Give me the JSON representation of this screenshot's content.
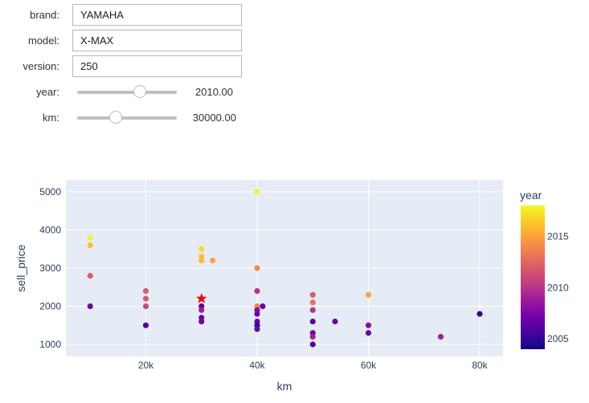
{
  "form": {
    "brand": {
      "label": "brand:",
      "value": "YAMAHA"
    },
    "model": {
      "label": "model:",
      "value": "X-MAX"
    },
    "version": {
      "label": "version:",
      "value": "250"
    },
    "year": {
      "label": "year:",
      "value": "2010.00",
      "slider_pos": 0.63
    },
    "km": {
      "label": "km:",
      "value": "30000.00",
      "slider_pos": 0.39
    }
  },
  "chart_data": {
    "type": "scatter",
    "title": "",
    "xlabel": "km",
    "ylabel": "sell_price",
    "xlim": [
      5000,
      85000
    ],
    "ylim": [
      700,
      5300
    ],
    "x_ticks": [
      {
        "v": 20000,
        "label": "20k"
      },
      {
        "v": 40000,
        "label": "40k"
      },
      {
        "v": 60000,
        "label": "60k"
      },
      {
        "v": 80000,
        "label": "80k"
      }
    ],
    "y_ticks": [
      {
        "v": 1000,
        "label": "1000"
      },
      {
        "v": 2000,
        "label": "2000"
      },
      {
        "v": 3000,
        "label": "3000"
      },
      {
        "v": 4000,
        "label": "4000"
      },
      {
        "v": 5000,
        "label": "5000"
      }
    ],
    "grid": true,
    "colorbar": {
      "title": "year",
      "min": 2004,
      "max": 2018,
      "ticks": [
        {
          "v": 2005,
          "label": "2005"
        },
        {
          "v": 2010,
          "label": "2010"
        },
        {
          "v": 2015,
          "label": "2015"
        }
      ],
      "colorscale": "plasma"
    },
    "points": [
      {
        "km": 10000,
        "sell_price": 3800,
        "year": 2018
      },
      {
        "km": 10000,
        "sell_price": 3600,
        "year": 2016
      },
      {
        "km": 10000,
        "sell_price": 2800,
        "year": 2012
      },
      {
        "km": 10000,
        "sell_price": 2000,
        "year": 2007
      },
      {
        "km": 20000,
        "sell_price": 2400,
        "year": 2012
      },
      {
        "km": 20000,
        "sell_price": 2200,
        "year": 2012
      },
      {
        "km": 20000,
        "sell_price": 2000,
        "year": 2011
      },
      {
        "km": 20000,
        "sell_price": 1500,
        "year": 2006
      },
      {
        "km": 30000,
        "sell_price": 3500,
        "year": 2017
      },
      {
        "km": 30000,
        "sell_price": 3300,
        "year": 2016
      },
      {
        "km": 30000,
        "sell_price": 3200,
        "year": 2016
      },
      {
        "km": 32000,
        "sell_price": 3200,
        "year": 2015
      },
      {
        "km": 30000,
        "sell_price": 2000,
        "year": 2006
      },
      {
        "km": 30000,
        "sell_price": 1900,
        "year": 2009
      },
      {
        "km": 30000,
        "sell_price": 1700,
        "year": 2007
      },
      {
        "km": 30000,
        "sell_price": 1600,
        "year": 2007
      },
      {
        "km": 40000,
        "sell_price": 5000,
        "year": 2018
      },
      {
        "km": 40000,
        "sell_price": 3000,
        "year": 2014
      },
      {
        "km": 40000,
        "sell_price": 2400,
        "year": 2010
      },
      {
        "km": 40000,
        "sell_price": 2000,
        "year": 2014
      },
      {
        "km": 41000,
        "sell_price": 2000,
        "year": 2007
      },
      {
        "km": 40000,
        "sell_price": 1900,
        "year": 2008
      },
      {
        "km": 40000,
        "sell_price": 1800,
        "year": 2007
      },
      {
        "km": 40000,
        "sell_price": 1600,
        "year": 2007
      },
      {
        "km": 40000,
        "sell_price": 1500,
        "year": 2005
      },
      {
        "km": 40000,
        "sell_price": 1400,
        "year": 2007
      },
      {
        "km": 50000,
        "sell_price": 2300,
        "year": 2012
      },
      {
        "km": 50000,
        "sell_price": 2100,
        "year": 2013
      },
      {
        "km": 50000,
        "sell_price": 1900,
        "year": 2010
      },
      {
        "km": 50000,
        "sell_price": 1600,
        "year": 2006
      },
      {
        "km": 54000,
        "sell_price": 1600,
        "year": 2007
      },
      {
        "km": 50000,
        "sell_price": 1300,
        "year": 2007
      },
      {
        "km": 50000,
        "sell_price": 1200,
        "year": 2009
      },
      {
        "km": 50000,
        "sell_price": 1000,
        "year": 2006
      },
      {
        "km": 60000,
        "sell_price": 2300,
        "year": 2015
      },
      {
        "km": 60000,
        "sell_price": 1500,
        "year": 2008
      },
      {
        "km": 60000,
        "sell_price": 1300,
        "year": 2007
      },
      {
        "km": 73000,
        "sell_price": 1200,
        "year": 2009
      },
      {
        "km": 80000,
        "sell_price": 1800,
        "year": 2005
      }
    ],
    "highlight": {
      "km": 30000,
      "sell_price": 2200,
      "marker": "star",
      "color": "#ff0000"
    }
  }
}
